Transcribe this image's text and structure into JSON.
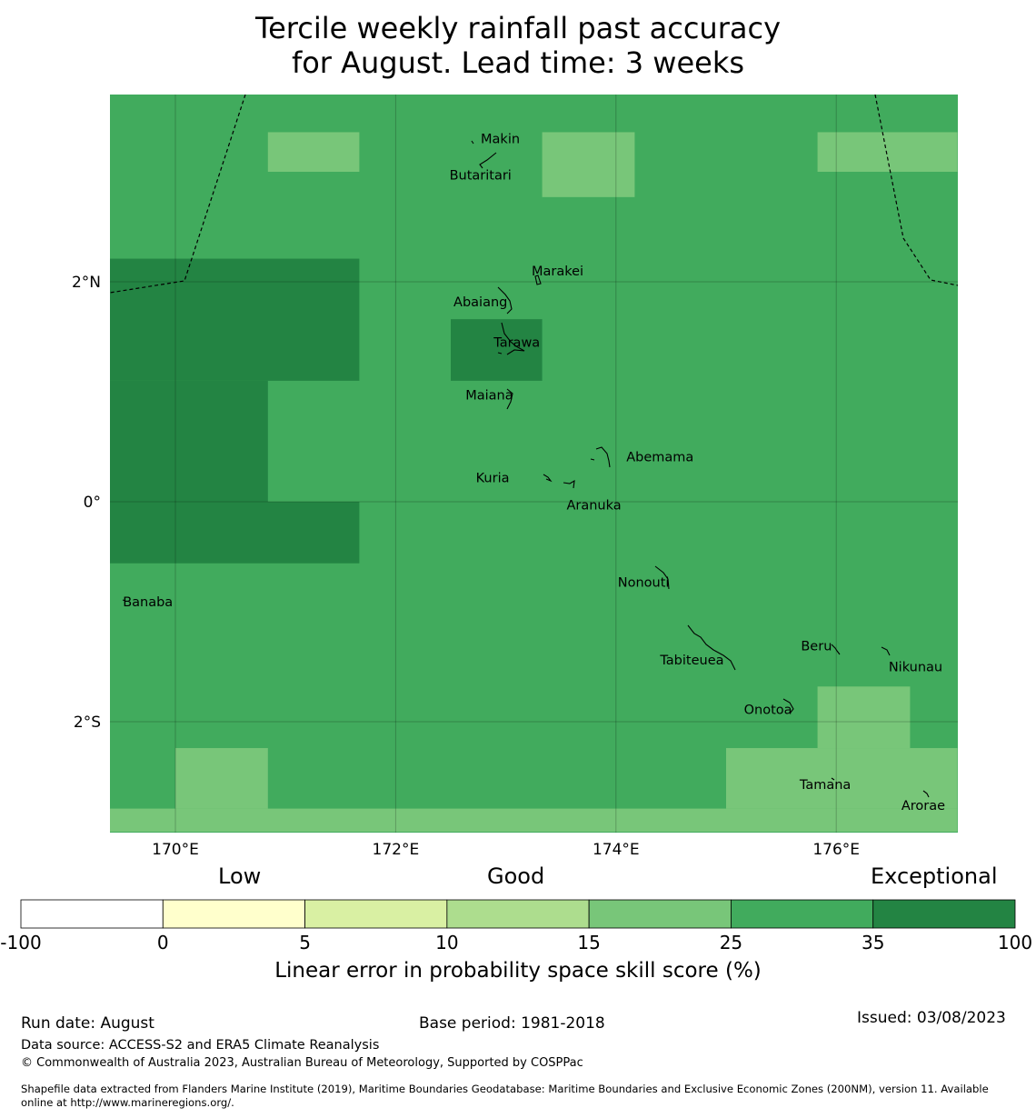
{
  "title": {
    "line1": "Tercile weekly rainfall past accuracy",
    "line2": "for August. Lead time: 3 weeks"
  },
  "map": {
    "lon_range": [
      169.4,
      177.1
    ],
    "lat_range": [
      -3.0,
      3.4
    ],
    "lon_ticks": [
      {
        "lon": 170,
        "label": "170°E"
      },
      {
        "lon": 172,
        "label": "172°E"
      },
      {
        "lon": 174,
        "label": "174°E"
      },
      {
        "lon": 176,
        "label": "176°E"
      }
    ],
    "lat_ticks": [
      {
        "lat": 2,
        "label": "2°N"
      },
      {
        "lat": 0,
        "label": "0°"
      },
      {
        "lat": -2,
        "label": "2°S"
      }
    ],
    "base_fill_color": "#41ab5d",
    "skill_patches": [
      {
        "lon": [
          170.84,
          171.67
        ],
        "lat": [
          3.0,
          3.36
        ],
        "color": "#78c679",
        "class": "15-25"
      },
      {
        "lon": [
          173.33,
          174.17
        ],
        "lat": [
          2.77,
          3.36
        ],
        "color": "#78c679",
        "class": "15-25"
      },
      {
        "lon": [
          175.83,
          177.1
        ],
        "lat": [
          3.0,
          3.36
        ],
        "color": "#78c679",
        "class": "15-25"
      },
      {
        "lon": [
          169.4,
          171.67
        ],
        "lat": [
          1.1,
          2.21
        ],
        "color": "#238443",
        "class": "35-100"
      },
      {
        "lon": [
          169.4,
          170.84
        ],
        "lat": [
          0.0,
          1.1
        ],
        "color": "#238443",
        "class": "35-100"
      },
      {
        "lon": [
          169.4,
          171.67
        ],
        "lat": [
          -0.56,
          0.0
        ],
        "color": "#238443",
        "class": "35-100"
      },
      {
        "lon": [
          172.5,
          173.33
        ],
        "lat": [
          1.1,
          1.66
        ],
        "color": "#238443",
        "class": "35-100"
      },
      {
        "lon": [
          170.0,
          170.84
        ],
        "lat": [
          -2.79,
          -2.24
        ],
        "color": "#78c679",
        "class": "15-25"
      },
      {
        "lon": [
          169.4,
          177.1
        ],
        "lat": [
          -3.0,
          -2.79
        ],
        "color": "#78c679",
        "class": "15-25"
      },
      {
        "lon": [
          175.0,
          177.1
        ],
        "lat": [
          -2.79,
          -2.24
        ],
        "color": "#78c679",
        "class": "15-25"
      },
      {
        "lon": [
          175.83,
          176.67
        ],
        "lat": [
          -2.24,
          -1.68
        ],
        "color": "#78c679",
        "class": "15-25"
      }
    ],
    "place_labels": [
      {
        "name": "Makin",
        "lon": 172.95,
        "lat": 3.3
      },
      {
        "name": "Butaritari",
        "lon": 172.77,
        "lat": 2.97
      },
      {
        "name": "Marakei",
        "lon": 173.47,
        "lat": 2.1
      },
      {
        "name": "Abaiang",
        "lon": 172.77,
        "lat": 1.82
      },
      {
        "name": "Tarawa",
        "lon": 173.1,
        "lat": 1.45
      },
      {
        "name": "Maiana",
        "lon": 172.85,
        "lat": 0.97
      },
      {
        "name": "Abemama",
        "lon": 174.4,
        "lat": 0.41
      },
      {
        "name": "Kuria",
        "lon": 172.88,
        "lat": 0.22
      },
      {
        "name": "Aranuka",
        "lon": 173.8,
        "lat": -0.03
      },
      {
        "name": "Nonouti",
        "lon": 174.25,
        "lat": -0.73
      },
      {
        "name": "Banaba",
        "lon": 169.75,
        "lat": -0.91
      },
      {
        "name": "Beru",
        "lon": 175.82,
        "lat": -1.31
      },
      {
        "name": "Tabiteuea",
        "lon": 174.69,
        "lat": -1.44
      },
      {
        "name": "Nikunau",
        "lon": 176.72,
        "lat": -1.5
      },
      {
        "name": "Onotoa",
        "lon": 175.38,
        "lat": -1.89
      },
      {
        "name": "Tamana",
        "lon": 175.9,
        "lat": -2.57
      },
      {
        "name": "Arorae",
        "lon": 176.79,
        "lat": -2.76
      }
    ]
  },
  "colorbar": {
    "category_labels": [
      "Low",
      "Good",
      "Exceptional"
    ],
    "bins": [
      {
        "from": "-100",
        "to": "0",
        "color": "#ffffff"
      },
      {
        "from": "0",
        "to": "5",
        "color": "#ffffcc"
      },
      {
        "from": "5",
        "to": "10",
        "color": "#d9f0a3"
      },
      {
        "from": "10",
        "to": "15",
        "color": "#addd8e"
      },
      {
        "from": "15",
        "to": "25",
        "color": "#78c679"
      },
      {
        "from": "25",
        "to": "35",
        "color": "#41ab5d"
      },
      {
        "from": "35",
        "to": "100",
        "color": "#238443"
      }
    ],
    "tick_labels": [
      "-100",
      "0",
      "5",
      "10",
      "15",
      "25",
      "35",
      "100"
    ],
    "title": "Linear error in probability space skill score (%)"
  },
  "footer": {
    "run_date": "Run date: August",
    "base_period": "Base period: 1981-2018",
    "issued": "Issued: 03/08/2023",
    "data_source": "Data source: ACCESS-S2 and ERA5 Climate Reanalysis",
    "copyright": "© Commonwealth of Australia 2023, Australian Bureau of Meteorology, Supported by COSPPac",
    "shapefile_line1": "Shapefile data extracted from Flanders Marine Institute (2019), Maritime Boundaries Geodatabase: Maritime Boundaries and Exclusive Economic Zones (200NM), version 11. Available",
    "shapefile_line2": "online at http://www.marineregions.org/."
  }
}
